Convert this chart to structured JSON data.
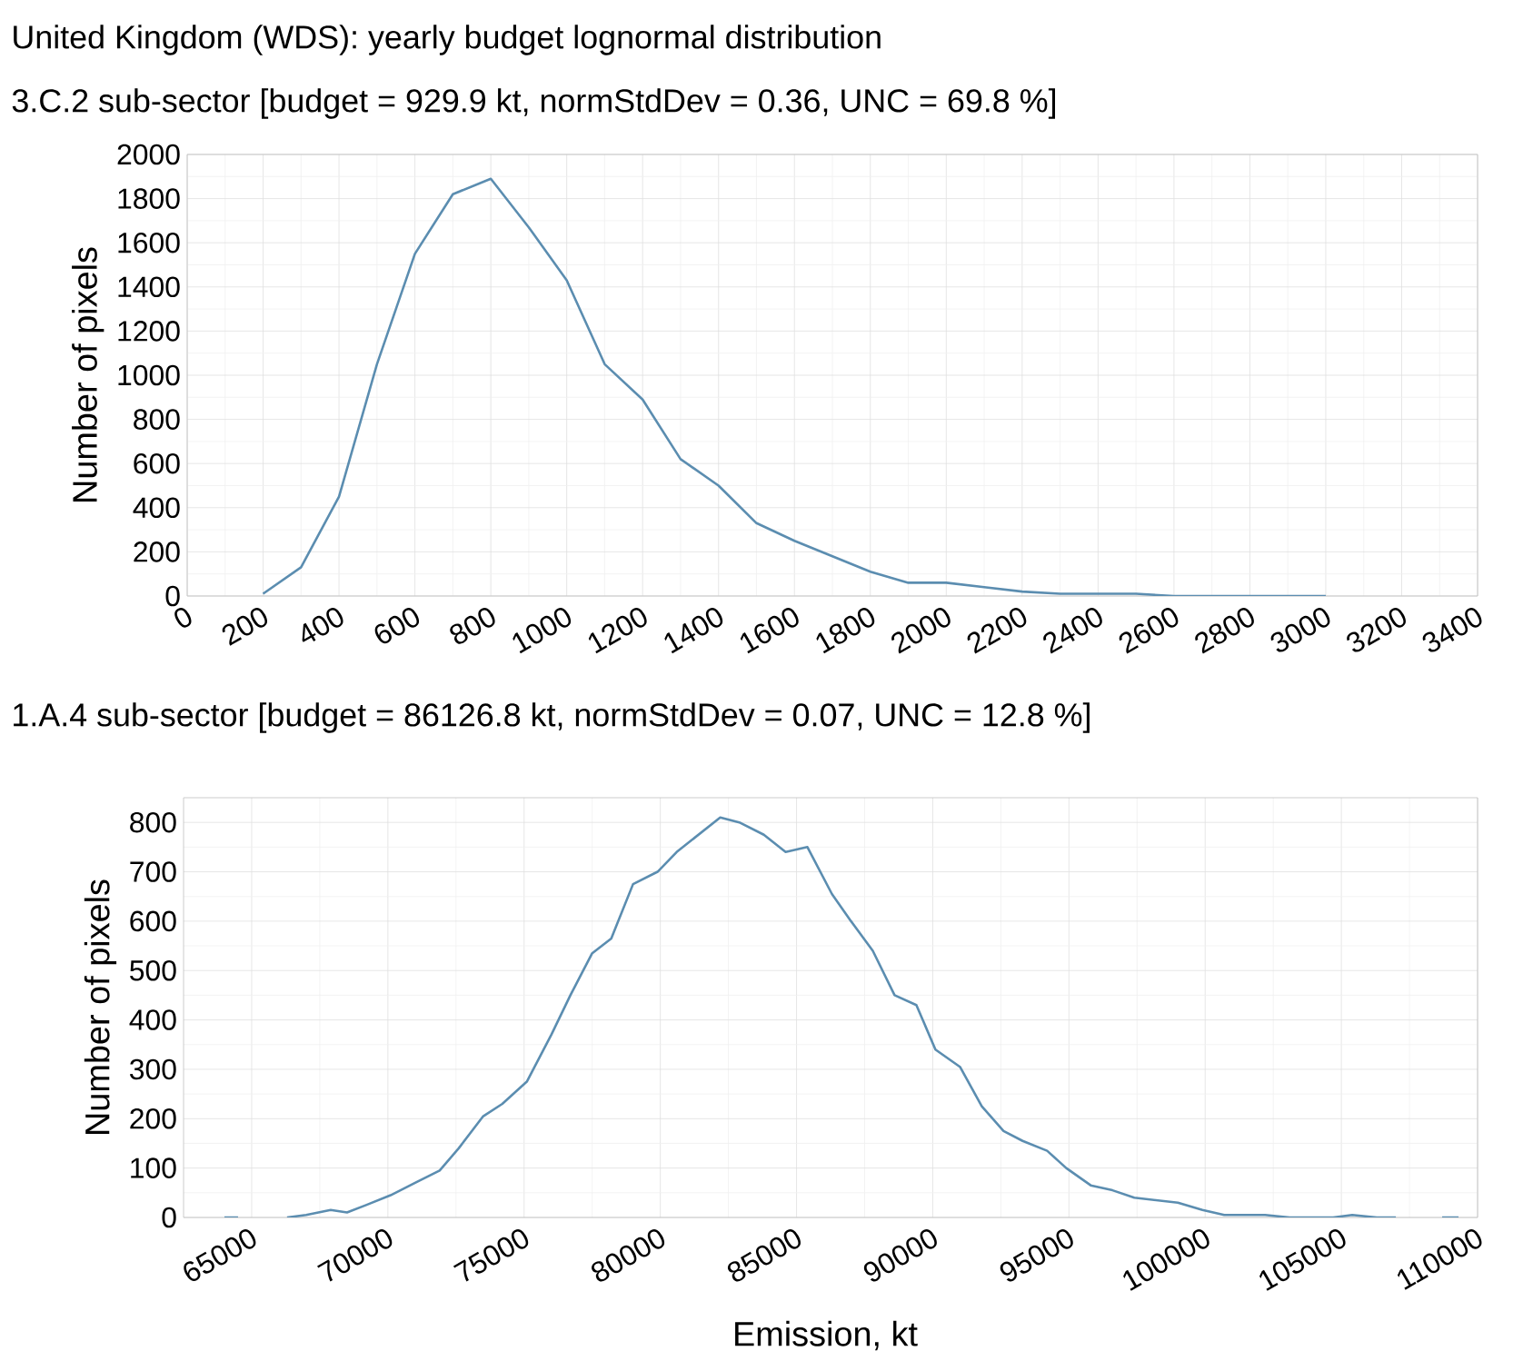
{
  "chart_data": [
    {
      "type": "line",
      "title": "United Kingdom (WDS): yearly budget lognormal distribution",
      "subtitle": "3.C.2 sub-sector  [budget = 929.9 kt, normStdDev = 0.36, UNC = 69.8 %]",
      "ylabel": "Number of pixels",
      "x": [
        200,
        300,
        400,
        500,
        600,
        700,
        800,
        900,
        1000,
        1100,
        1200,
        1300,
        1400,
        1500,
        1600,
        1700,
        1800,
        1900,
        2000,
        2100,
        2200,
        2300,
        2400,
        2500,
        2600,
        2700,
        2800,
        2900,
        3000
      ],
      "values": [
        10,
        130,
        450,
        1050,
        1550,
        1820,
        1890,
        1670,
        1430,
        1050,
        890,
        620,
        500,
        330,
        250,
        180,
        110,
        60,
        60,
        40,
        20,
        10,
        10,
        10,
        0,
        0,
        0,
        0,
        0
      ],
      "color": "#5b8db0",
      "xlim": [
        0,
        3400
      ],
      "ylim": [
        0,
        2000
      ],
      "xticks": [
        0,
        200,
        400,
        600,
        800,
        1000,
        1200,
        1400,
        1600,
        1800,
        2000,
        2200,
        2400,
        2600,
        2800,
        3000,
        3200,
        3400
      ],
      "yticks": [
        0,
        200,
        400,
        600,
        800,
        1000,
        1200,
        1400,
        1600,
        1800,
        2000
      ],
      "grid": true,
      "marker": "none"
    },
    {
      "type": "line",
      "title": "1.A.4 sub-sector  [budget = 86126.8 kt, normStdDev = 0.07, UNC = 12.8 %]",
      "xlabel": "Emission, kt",
      "ylabel": "Number of pixels",
      "x": [
        64000,
        64500,
        65000,
        66300,
        67000,
        67900,
        68500,
        69200,
        70100,
        71000,
        71900,
        72600,
        73500,
        74200,
        75100,
        76000,
        76700,
        77500,
        78200,
        79000,
        79900,
        80600,
        81400,
        82200,
        82900,
        83800,
        84600,
        85400,
        86300,
        87000,
        87800,
        88600,
        89400,
        90100,
        91000,
        91800,
        92600,
        93300,
        94200,
        94900,
        95800,
        96600,
        97400,
        98200,
        99000,
        99900,
        100700,
        101500,
        102200,
        103100,
        104000,
        104700,
        105400,
        106300,
        107000,
        108000,
        108700,
        109300
      ],
      "values": [
        0,
        0,
        null,
        0,
        5,
        15,
        10,
        25,
        45,
        70,
        95,
        140,
        205,
        230,
        275,
        370,
        450,
        535,
        565,
        675,
        700,
        740,
        775,
        810,
        800,
        775,
        740,
        750,
        655,
        600,
        540,
        450,
        430,
        340,
        305,
        225,
        175,
        155,
        135,
        100,
        65,
        55,
        40,
        35,
        30,
        15,
        5,
        5,
        5,
        0,
        0,
        0,
        5,
        0,
        0,
        null,
        0,
        0
      ],
      "color": "#5b8db0",
      "xlim": [
        62500,
        110000
      ],
      "ylim": [
        0,
        850
      ],
      "xticks": [
        65000,
        70000,
        75000,
        80000,
        85000,
        90000,
        95000,
        100000,
        105000,
        110000
      ],
      "yticks": [
        0,
        100,
        200,
        300,
        400,
        500,
        600,
        700,
        800
      ],
      "grid": true,
      "marker": "none"
    }
  ]
}
